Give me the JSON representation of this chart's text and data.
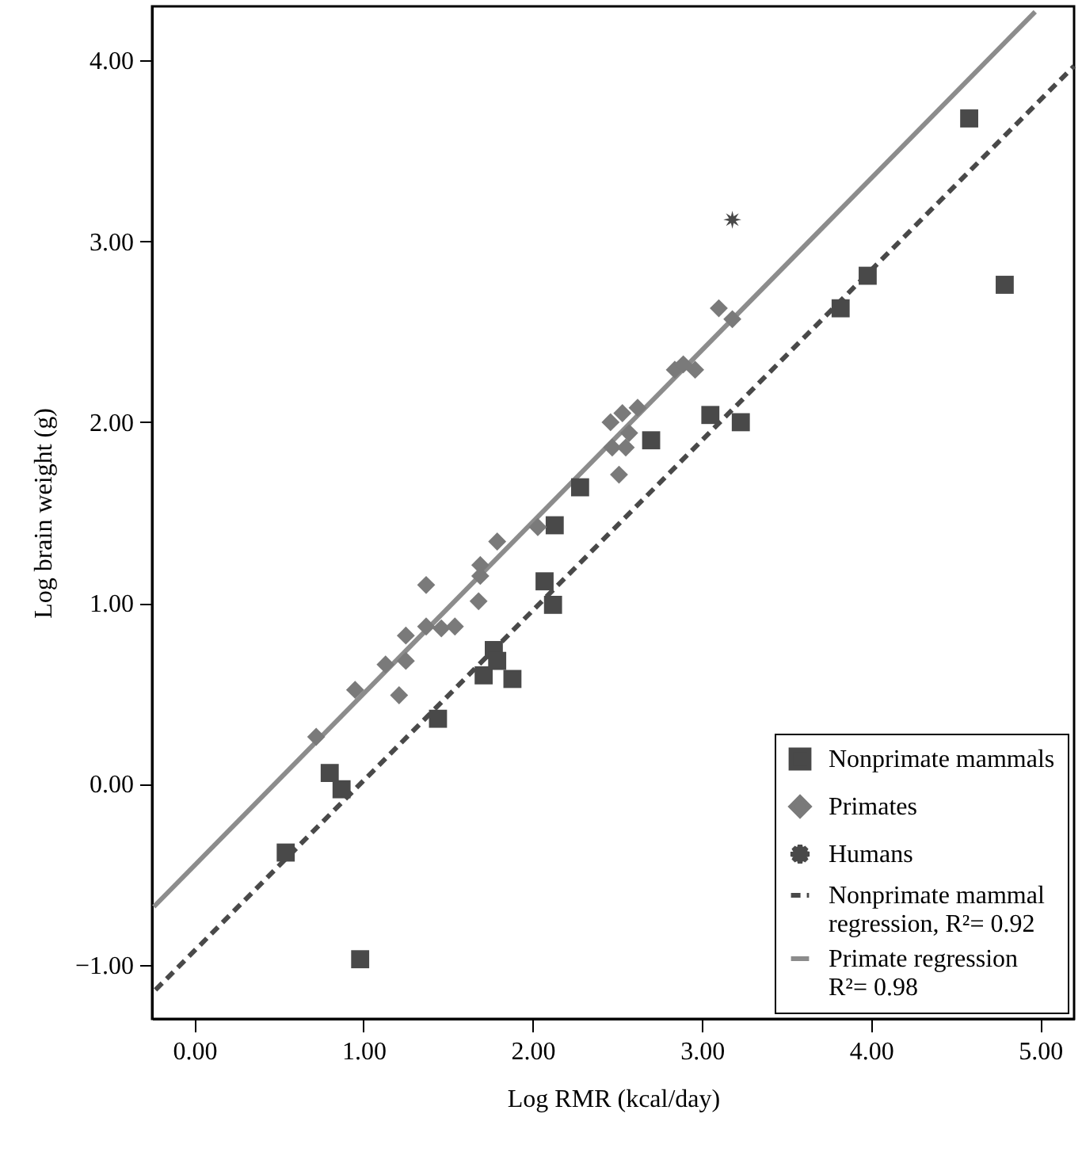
{
  "chart_data": {
    "type": "scatter",
    "xlabel": "Log RMR (kcal/day)",
    "ylabel": "Log brain weight (g)",
    "xlim": [
      -0.25,
      5.2
    ],
    "ylim": [
      -1.3,
      4.3
    ],
    "xticks": [
      {
        "value": 0,
        "label": "0.00"
      },
      {
        "value": 1,
        "label": "1.00"
      },
      {
        "value": 2,
        "label": "2.00"
      },
      {
        "value": 3,
        "label": "3.00"
      },
      {
        "value": 4,
        "label": "4.00"
      },
      {
        "value": 5,
        "label": "5.00"
      }
    ],
    "yticks": [
      {
        "value": -1,
        "label": "−1.00"
      },
      {
        "value": 0,
        "label": "0.00"
      },
      {
        "value": 1,
        "label": "1.00"
      },
      {
        "value": 2,
        "label": "2.00"
      },
      {
        "value": 3,
        "label": "3.00"
      },
      {
        "value": 4,
        "label": "4.00"
      }
    ],
    "grid": false,
    "legend": "bottom right",
    "series": [
      {
        "name": "Nonprimate mammals",
        "type": "scatter",
        "marker": "square",
        "color": "#494949",
        "x": [
          0.54,
          0.8,
          0.87,
          0.98,
          1.44,
          1.71,
          1.77,
          1.79,
          1.88,
          2.07,
          2.12,
          2.13,
          2.28,
          2.7,
          3.05,
          3.23,
          3.82,
          3.98,
          4.58,
          4.79
        ],
        "values": [
          -0.38,
          0.06,
          -0.03,
          -0.97,
          0.36,
          0.6,
          0.74,
          0.68,
          0.58,
          1.12,
          0.99,
          1.43,
          1.64,
          1.9,
          2.04,
          2.0,
          2.63,
          2.81,
          3.68,
          2.76
        ]
      },
      {
        "name": "Primates",
        "type": "scatter",
        "marker": "diamond",
        "color": "#7a7a7a",
        "x": [
          0.72,
          0.95,
          1.13,
          1.21,
          1.25,
          1.25,
          1.37,
          1.37,
          1.46,
          1.54,
          1.68,
          1.69,
          1.69,
          1.79,
          2.03,
          2.47,
          2.51,
          2.46,
          2.53,
          2.55,
          2.57,
          2.62,
          2.84,
          2.89,
          2.96,
          3.1,
          3.18
        ],
        "values": [
          0.26,
          0.52,
          0.66,
          0.49,
          0.82,
          0.68,
          1.1,
          0.87,
          0.86,
          0.87,
          1.01,
          1.21,
          1.15,
          1.34,
          1.42,
          1.86,
          1.71,
          2.0,
          2.05,
          1.86,
          1.94,
          2.08,
          2.29,
          2.32,
          2.29,
          2.63,
          2.57
        ]
      },
      {
        "name": "Humans",
        "type": "scatter",
        "marker": "star",
        "color": "#494949",
        "x": [
          3.18
        ],
        "values": [
          3.12
        ]
      },
      {
        "name": "Nonprimate mammal regression, R²= 0.92",
        "type": "line",
        "line_style": "dashed",
        "color": "#494949",
        "x": [
          -0.23,
          5.2
        ],
        "values": [
          -1.14,
          3.97
        ]
      },
      {
        "name": "Primate regression R²= 0.98",
        "type": "line",
        "line_style": "solid",
        "color": "#8c8c8c",
        "x": [
          -0.24,
          4.97
        ],
        "values": [
          -0.68,
          4.27
        ]
      }
    ]
  }
}
